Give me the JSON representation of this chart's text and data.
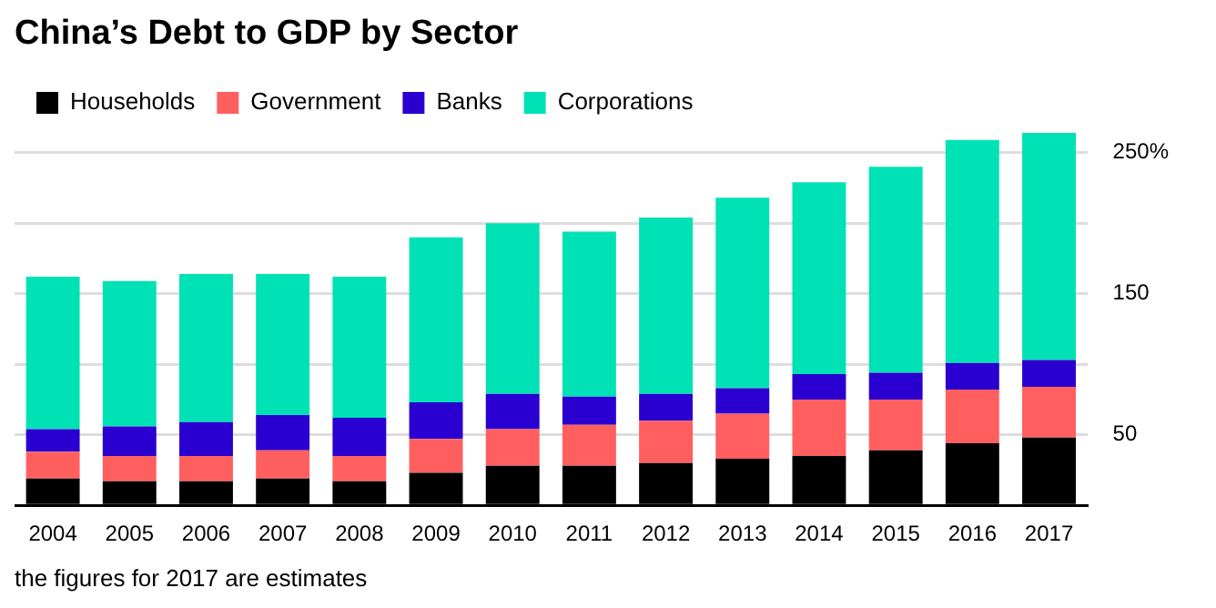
{
  "chart_data": {
    "type": "bar",
    "title": "China’s Debt to GDP by Sector",
    "stacked": true,
    "legend": "top left",
    "grid": "y",
    "categories": [
      "2004",
      "2005",
      "2006",
      "2007",
      "2008",
      "2009",
      "2010",
      "2011",
      "2012",
      "2013",
      "2014",
      "2015",
      "2016",
      "2017"
    ],
    "series": [
      {
        "name": "Households",
        "color": "#000000",
        "values": [
          19,
          17,
          17,
          19,
          17,
          23,
          28,
          28,
          30,
          33,
          35,
          39,
          44,
          48
        ]
      },
      {
        "name": "Government",
        "color": "#ff5f5f",
        "values": [
          19,
          18,
          18,
          20,
          18,
          24,
          26,
          29,
          30,
          32,
          40,
          36,
          38,
          36
        ]
      },
      {
        "name": "Banks",
        "color": "#2a00d0",
        "values": [
          16,
          21,
          24,
          25,
          27,
          26,
          25,
          20,
          19,
          18,
          18,
          19,
          19,
          19
        ]
      },
      {
        "name": "Corporations",
        "color": "#00e2b5",
        "values": [
          108,
          103,
          105,
          100,
          100,
          117,
          121,
          117,
          125,
          135,
          136,
          146,
          158,
          161
        ]
      }
    ],
    "ylim": [
      0,
      264
    ],
    "yticks": [
      {
        "value": 0,
        "label": null
      },
      {
        "value": 50,
        "label": "50"
      },
      {
        "value": 100,
        "label": null
      },
      {
        "value": 150,
        "label": "150"
      },
      {
        "value": 200,
        "label": null
      },
      {
        "value": 250,
        "label": "250%"
      }
    ],
    "annotations": [
      "the figures for 2017 are estimates"
    ]
  }
}
